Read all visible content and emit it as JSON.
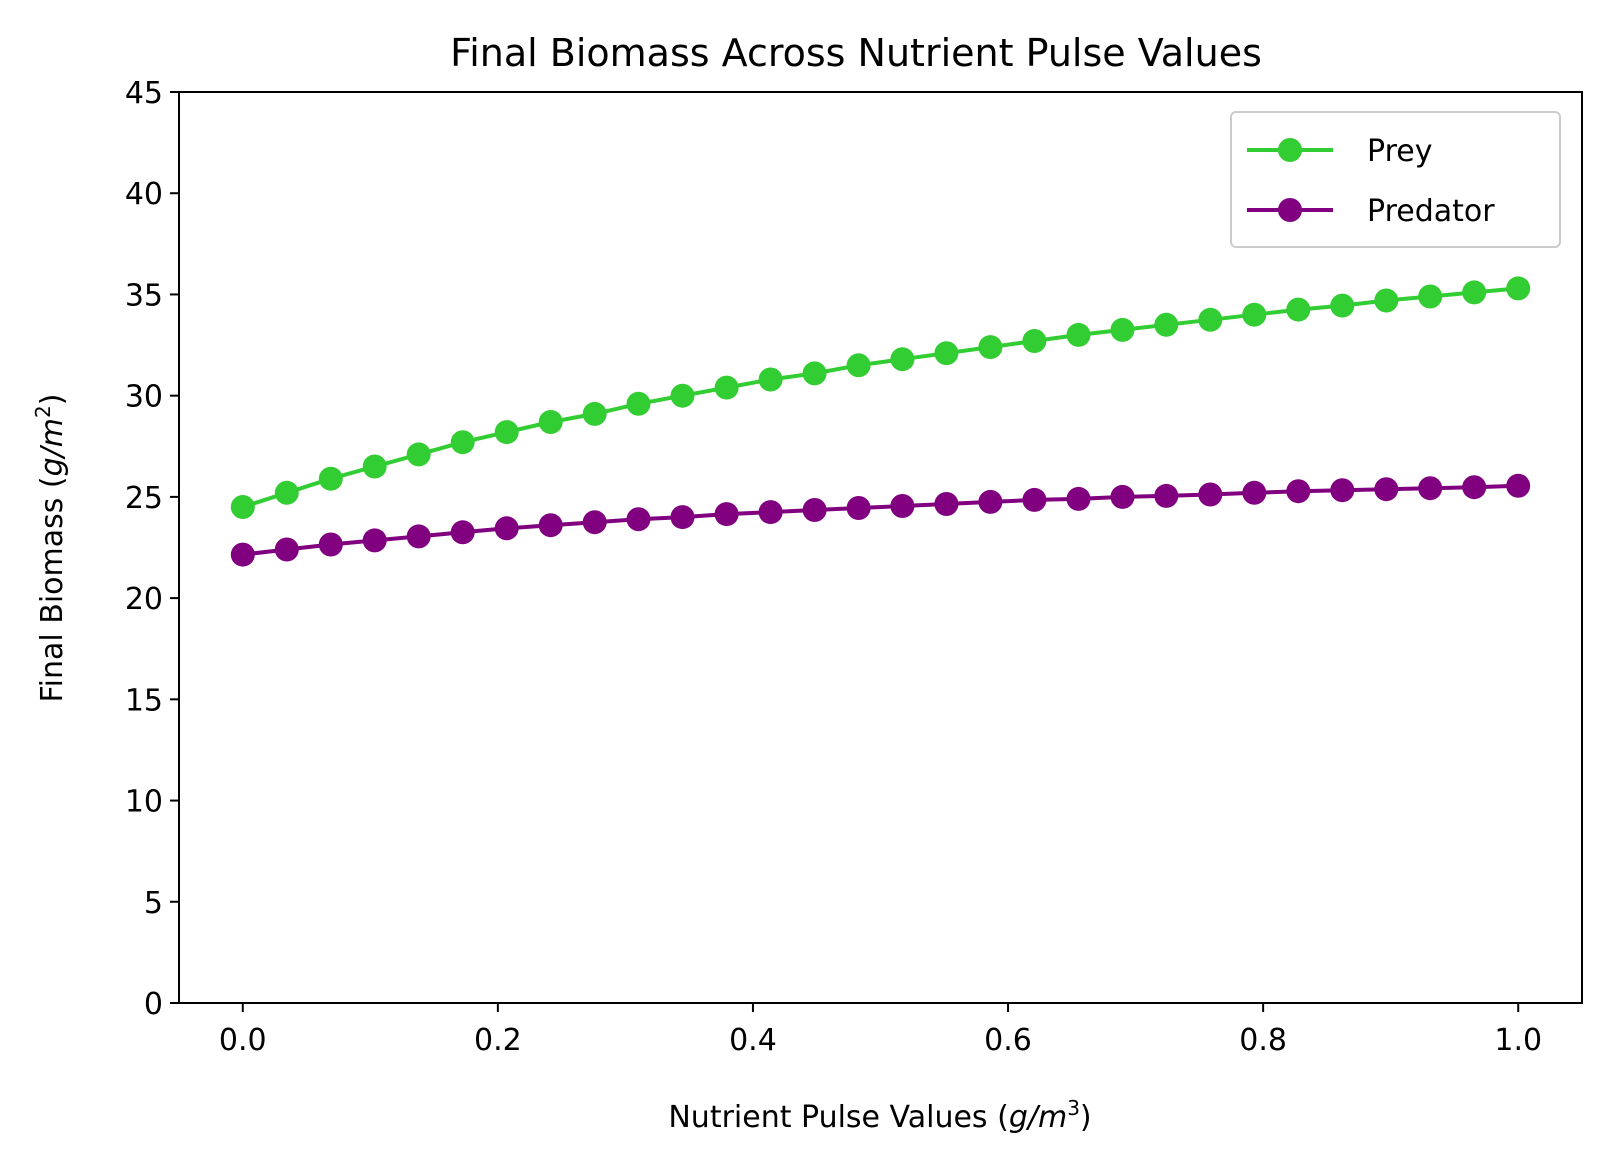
{
  "chart_data": {
    "type": "line",
    "title": "Final Biomass Across Nutrient Pulse Values",
    "xlabel_main": "Nutrient Pulse Values (",
    "xlabel_unit": "g/m",
    "xlabel_exp": "3",
    "xlabel_close": ")",
    "ylabel_main": "Final Biomass (",
    "ylabel_unit": "g/m",
    "ylabel_exp": "2",
    "ylabel_close": ")",
    "xlim": [
      -0.05,
      1.05
    ],
    "ylim": [
      0,
      45
    ],
    "xticks": [
      "0.0",
      "0.2",
      "0.4",
      "0.6",
      "0.8",
      "1.0"
    ],
    "xtick_values": [
      0.0,
      0.2,
      0.4,
      0.6,
      0.8,
      1.0
    ],
    "yticks": [
      "0",
      "5",
      "10",
      "15",
      "20",
      "25",
      "30",
      "35",
      "40",
      "45"
    ],
    "ytick_values": [
      0,
      5,
      10,
      15,
      20,
      25,
      30,
      35,
      40,
      45
    ],
    "grid": false,
    "legend_position": "top-right",
    "x": [
      0.0,
      0.0345,
      0.069,
      0.1034,
      0.1379,
      0.1724,
      0.2069,
      0.2414,
      0.2759,
      0.3103,
      0.3448,
      0.3793,
      0.4138,
      0.4483,
      0.4828,
      0.5172,
      0.5517,
      0.5862,
      0.6207,
      0.6552,
      0.6897,
      0.7241,
      0.7586,
      0.7931,
      0.8276,
      0.8621,
      0.8966,
      0.931,
      0.9655,
      1.0
    ],
    "series": [
      {
        "name": "Prey",
        "color": "#32cd32",
        "values": [
          24.5,
          25.2,
          25.9,
          26.5,
          27.1,
          27.7,
          28.2,
          28.7,
          29.1,
          29.6,
          30.0,
          30.4,
          30.8,
          31.1,
          31.5,
          31.8,
          32.1,
          32.4,
          32.7,
          33.0,
          33.25,
          33.5,
          33.75,
          34.0,
          34.25,
          34.45,
          34.7,
          34.9,
          35.1,
          35.3
        ]
      },
      {
        "name": "Predator",
        "color": "#800080",
        "values": [
          22.15,
          22.4,
          22.65,
          22.85,
          23.05,
          23.25,
          23.45,
          23.6,
          23.75,
          23.9,
          24.0,
          24.15,
          24.25,
          24.35,
          24.45,
          24.55,
          24.65,
          24.75,
          24.85,
          24.9,
          25.0,
          25.05,
          25.12,
          25.2,
          25.28,
          25.33,
          25.38,
          25.43,
          25.48,
          25.55
        ]
      }
    ]
  }
}
